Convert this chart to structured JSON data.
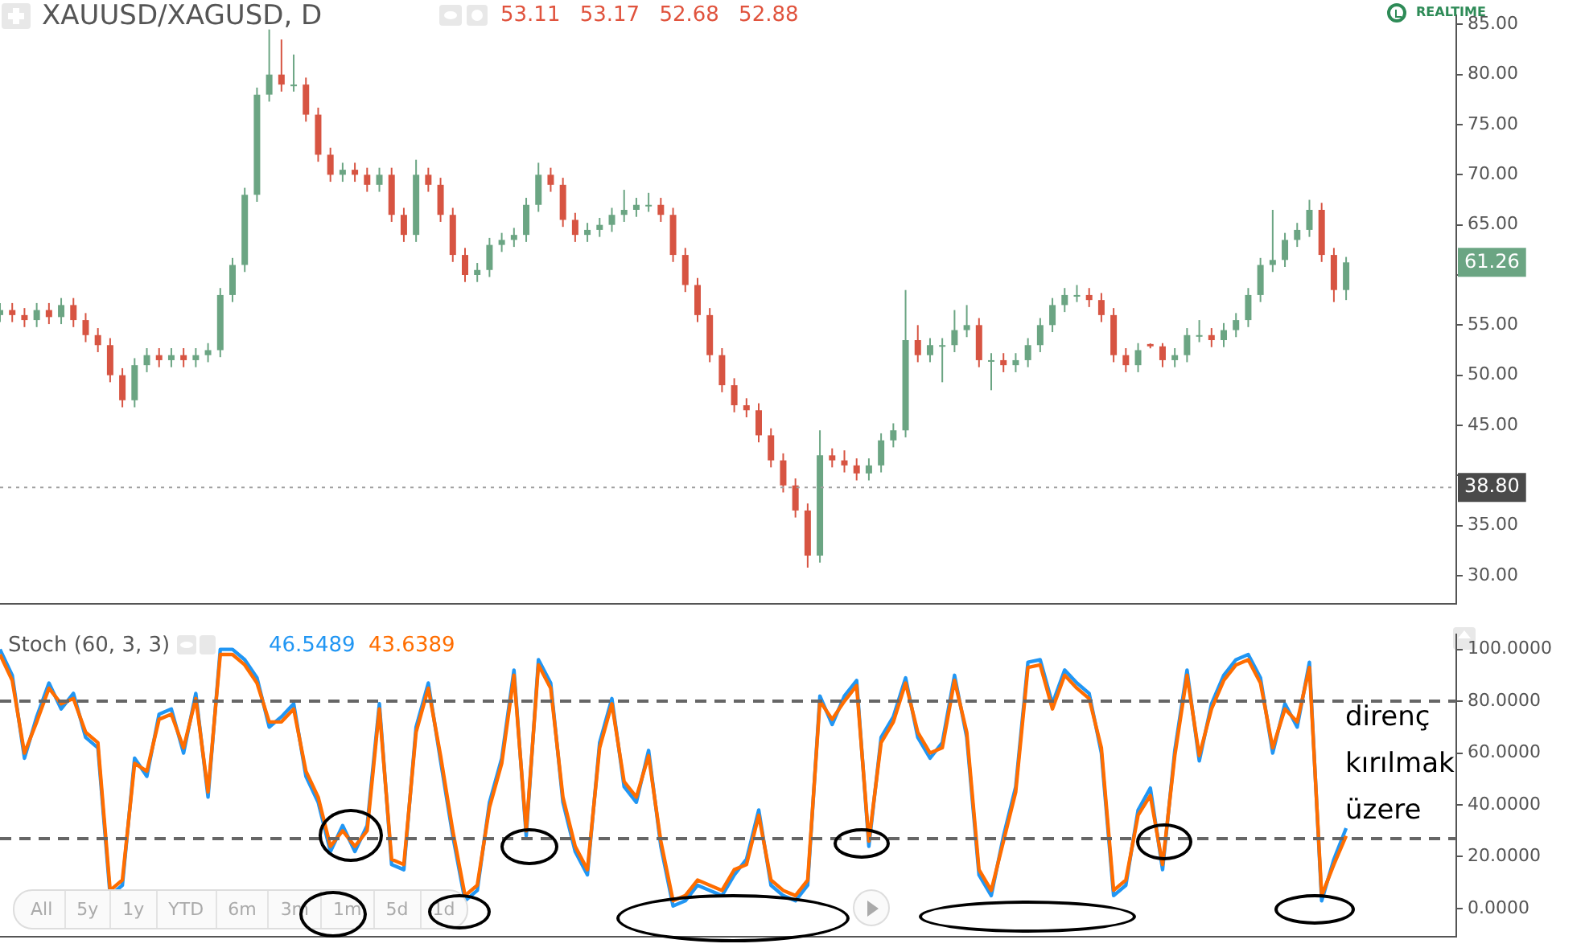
{
  "chart_data": [
    {
      "type": "candlestick",
      "title": "XAUUSD/XAGUSD, D",
      "categories": [
        null,
        null,
        null,
        null,
        null,
        null,
        null,
        null,
        null,
        null,
        null,
        null,
        null,
        null,
        null,
        null,
        null,
        null,
        null,
        null,
        null,
        null,
        null,
        null,
        null,
        null,
        null,
        null,
        null,
        null,
        null,
        null,
        null,
        null,
        null,
        null,
        null,
        null,
        null,
        null,
        null,
        null,
        null,
        null,
        null,
        null,
        null,
        null,
        null,
        null,
        null,
        null,
        null,
        null,
        null,
        null,
        null,
        null,
        null,
        null,
        null,
        null,
        null,
        null,
        null,
        null,
        null,
        null,
        null,
        null,
        null,
        null,
        null,
        null,
        null,
        null,
        null,
        null,
        null,
        null,
        null,
        null,
        null,
        null,
        null,
        null,
        null,
        null,
        null,
        null,
        null,
        null,
        null,
        null,
        null,
        null,
        null,
        null,
        null,
        null,
        null,
        null,
        null,
        null,
        null,
        null,
        null,
        null,
        null,
        null,
        null,
        null,
        null,
        null,
        null,
        null,
        null,
        null,
        null,
        null
      ],
      "ohlc": [
        [
          56,
          57.2,
          55.3,
          56.5
        ],
        [
          56.5,
          57.2,
          55.3,
          56
        ],
        [
          56,
          56.7,
          54.8,
          55.5
        ],
        [
          55.5,
          57.2,
          54.8,
          56.5
        ],
        [
          56.5,
          57.2,
          55.1,
          55.8
        ],
        [
          55.8,
          57.7,
          55.1,
          57
        ],
        [
          57,
          57.7,
          54.8,
          55.5
        ],
        [
          55.5,
          56.2,
          53.3,
          54
        ],
        [
          54,
          54.7,
          52.3,
          53
        ],
        [
          53,
          53.7,
          49.3,
          50
        ],
        [
          50,
          50.7,
          46.8,
          47.5
        ],
        [
          47.5,
          51.7,
          46.8,
          51
        ],
        [
          51,
          52.7,
          50.3,
          52
        ],
        [
          52,
          52.7,
          50.8,
          51.5
        ],
        [
          51.5,
          52.7,
          50.8,
          52
        ],
        [
          52,
          52.7,
          50.8,
          51.5
        ],
        [
          51.5,
          52.7,
          50.8,
          52
        ],
        [
          52,
          53.2,
          51.3,
          52.5
        ],
        [
          52.5,
          58.7,
          51.8,
          58
        ],
        [
          58,
          61.7,
          57.3,
          61
        ],
        [
          61,
          68.7,
          60.3,
          68
        ],
        [
          68,
          78.7,
          67.3,
          78
        ],
        [
          78,
          84.5,
          77.3,
          80
        ],
        [
          80,
          83.5,
          78.3,
          79
        ],
        [
          79,
          82,
          78.3,
          79
        ],
        [
          79,
          79.7,
          75.3,
          76
        ],
        [
          76,
          76.7,
          71.3,
          72
        ],
        [
          72,
          72.7,
          69.3,
          70
        ],
        [
          70,
          71.2,
          69.3,
          70.5
        ],
        [
          70.5,
          71.2,
          69.3,
          70
        ],
        [
          70,
          70.7,
          68.3,
          69
        ],
        [
          69,
          70.7,
          68.3,
          70
        ],
        [
          70,
          70.7,
          65.3,
          66
        ],
        [
          66,
          66.7,
          63.3,
          64
        ],
        [
          64,
          71.5,
          63.3,
          70
        ],
        [
          70,
          70.7,
          68.3,
          69
        ],
        [
          69,
          69.7,
          65.3,
          66
        ],
        [
          66,
          66.7,
          61.3,
          62
        ],
        [
          62,
          62.7,
          59.3,
          60
        ],
        [
          60,
          61.2,
          59.3,
          60.5
        ],
        [
          60.5,
          63.7,
          59.8,
          63
        ],
        [
          63,
          64.2,
          62.3,
          63.5
        ],
        [
          63.5,
          64.7,
          62.8,
          64
        ],
        [
          64,
          67.7,
          63.3,
          67
        ],
        [
          67,
          71.2,
          66.3,
          70
        ],
        [
          70,
          70.7,
          68.3,
          69
        ],
        [
          69,
          69.7,
          64.8,
          65.5
        ],
        [
          65.5,
          66.2,
          63.3,
          64
        ],
        [
          64,
          65.2,
          63.3,
          64.5
        ],
        [
          64.5,
          65.7,
          63.8,
          65
        ],
        [
          65,
          66.7,
          64.3,
          66
        ],
        [
          66,
          68.5,
          65.3,
          66.5
        ],
        [
          66.5,
          67.7,
          65.8,
          67
        ],
        [
          67,
          68.2,
          66.3,
          67
        ],
        [
          67,
          67.7,
          65.3,
          66
        ],
        [
          66,
          66.7,
          61.3,
          62
        ],
        [
          62,
          62.7,
          58.3,
          59
        ],
        [
          59,
          59.7,
          55.3,
          56
        ],
        [
          56,
          56.7,
          51.3,
          52
        ],
        [
          52,
          52.7,
          48.3,
          49
        ],
        [
          49,
          49.7,
          46.3,
          47
        ],
        [
          47,
          47.7,
          45.8,
          46.5
        ],
        [
          46.5,
          47.2,
          43.3,
          44
        ],
        [
          44,
          44.7,
          40.8,
          41.5
        ],
        [
          41.5,
          42.2,
          38.3,
          39
        ],
        [
          39,
          39.7,
          35.8,
          36.5
        ],
        [
          36.5,
          37.2,
          30.8,
          32
        ],
        [
          32,
          44.5,
          31.3,
          42
        ],
        [
          42,
          42.7,
          40.8,
          41.5
        ],
        [
          41.5,
          42.5,
          40.3,
          41
        ],
        [
          41,
          41.7,
          39.5,
          40.2
        ],
        [
          40.2,
          41.7,
          39.5,
          41
        ],
        [
          41,
          44.2,
          40.3,
          43.5
        ],
        [
          43.5,
          45.2,
          42.8,
          44.5
        ],
        [
          44.5,
          58.5,
          43.8,
          53.5
        ],
        [
          53.5,
          55,
          51.3,
          52
        ],
        [
          52,
          53.7,
          51.3,
          53
        ],
        [
          53,
          53.7,
          49.3,
          53
        ],
        [
          53,
          56.5,
          52.3,
          54.5
        ],
        [
          54.5,
          57,
          53.8,
          55
        ],
        [
          55,
          55.7,
          50.8,
          51.5
        ],
        [
          51.5,
          52.2,
          48.5,
          51.5
        ],
        [
          51.5,
          52.2,
          50.3,
          51
        ],
        [
          51,
          52.2,
          50.3,
          51.5
        ],
        [
          51.5,
          53.7,
          50.8,
          53
        ],
        [
          53,
          55.7,
          52.3,
          55
        ],
        [
          55,
          57.7,
          54.3,
          57
        ],
        [
          57,
          58.7,
          56.3,
          58
        ],
        [
          58,
          59,
          57.3,
          58
        ],
        [
          58,
          58.7,
          56.8,
          57.5
        ],
        [
          57.5,
          58.2,
          55.3,
          56
        ],
        [
          56,
          56.7,
          51.3,
          52
        ],
        [
          52,
          52.7,
          50.3,
          51
        ],
        [
          51,
          53.2,
          50.3,
          52.5
        ],
        [
          53.11,
          53.17,
          52.68,
          52.88
        ],
        [
          52.88,
          53.2,
          50.8,
          51.5
        ],
        [
          51.5,
          52.7,
          50.8,
          52
        ],
        [
          52,
          54.7,
          51.3,
          54
        ],
        [
          54,
          55.5,
          53.3,
          54
        ],
        [
          54,
          54.7,
          52.8,
          53.5
        ],
        [
          53.5,
          55.2,
          52.8,
          54.5
        ],
        [
          54.5,
          56.2,
          53.8,
          55.5
        ],
        [
          55.5,
          58.7,
          54.8,
          58
        ],
        [
          58,
          61.7,
          57.3,
          61
        ],
        [
          61,
          66.5,
          60.3,
          61.5
        ],
        [
          61.5,
          64.2,
          60.8,
          63.5
        ],
        [
          63.5,
          65.2,
          62.8,
          64.5
        ],
        [
          64.5,
          67.5,
          63.8,
          66.5
        ],
        [
          66.5,
          67.2,
          61.3,
          62
        ],
        [
          62,
          62.7,
          57.3,
          58.5
        ],
        [
          58.5,
          61.8,
          57.5,
          61.26
        ],
        null,
        null,
        null,
        null,
        null,
        null,
        null,
        null,
        null
      ],
      "colors": [
        "#6ba583",
        "#d75442",
        "#d75442",
        "#6ba583",
        "#d75442",
        "#6ba583",
        "#d75442",
        "#d75442",
        "#d75442",
        "#d75442",
        "#d75442",
        "#6ba583",
        "#6ba583",
        "#d75442",
        "#6ba583",
        "#d75442",
        "#6ba583",
        "#6ba583",
        "#6ba583",
        "#6ba583",
        "#6ba583",
        "#6ba583",
        "#6ba583",
        "#d75442",
        "#6ba583",
        "#d75442",
        "#d75442",
        "#d75442",
        "#6ba583",
        "#d75442",
        "#d75442",
        "#6ba583",
        "#d75442",
        "#d75442",
        "#6ba583",
        "#d75442",
        "#d75442",
        "#d75442",
        "#d75442",
        "#6ba583",
        "#6ba583",
        "#6ba583",
        "#6ba583",
        "#6ba583",
        "#6ba583",
        "#d75442",
        "#d75442",
        "#d75442",
        "#6ba583",
        "#6ba583",
        "#6ba583",
        "#6ba583",
        "#6ba583",
        "#6ba583",
        "#d75442",
        "#d75442",
        "#d75442",
        "#d75442",
        "#d75442",
        "#d75442",
        "#d75442",
        "#d75442",
        "#d75442",
        "#d75442",
        "#d75442",
        "#d75442",
        "#d75442",
        "#6ba583",
        "#d75442",
        "#d75442",
        "#d75442",
        "#6ba583",
        "#6ba583",
        "#6ba583",
        "#6ba583",
        "#d75442",
        "#6ba583",
        "#6ba583",
        "#6ba583",
        "#6ba583",
        "#d75442",
        "#6ba583",
        "#d75442",
        "#6ba583",
        "#6ba583",
        "#6ba583",
        "#6ba583",
        "#6ba583",
        "#6ba583",
        "#d75442",
        "#d75442",
        "#d75442",
        "#d75442",
        "#6ba583",
        "#d75442",
        "#d75442",
        "#6ba583",
        "#6ba583",
        "#6ba583",
        "#d75442",
        "#6ba583",
        "#6ba583",
        "#6ba583",
        "#6ba583",
        "#6ba583",
        "#6ba583",
        "#6ba583",
        "#6ba583",
        "#d75442",
        "#d75442",
        "#6ba583",
        null,
        null,
        null,
        null,
        null,
        null,
        null,
        null,
        null
      ],
      "ylim": [
        27.2,
        85.9
      ],
      "yticks": [
        {
          "value": 30,
          "label": "30.00"
        },
        {
          "value": 35,
          "label": "35.00"
        },
        {
          "value": 40,
          "label": null
        },
        {
          "value": 45,
          "label": "45.00"
        },
        {
          "value": 50,
          "label": "50.00"
        },
        {
          "value": 55,
          "label": "55.00"
        },
        {
          "value": 60,
          "label": null
        },
        {
          "value": 65,
          "label": "65.00"
        },
        {
          "value": 70,
          "label": "70.00"
        },
        {
          "value": 75,
          "label": "75.00"
        },
        {
          "value": 80,
          "label": "80.00"
        },
        {
          "value": 85,
          "label": "85.00"
        }
      ],
      "tick_labels": "y",
      "ref_lines": [
        {
          "axis": "y",
          "value": 38.8,
          "label": "38.80",
          "color": "#9e9e9e",
          "line_style": "dotted"
        }
      ],
      "annotations": [
        "53.11 53.17 52.68 52.88",
        "REALTIME",
        {
          "text": "61.26",
          "y": 61.26
        }
      ]
    },
    {
      "type": "line",
      "title": "Stoch (60, 3, 3)",
      "categories": [
        null,
        null,
        null,
        null,
        null,
        null,
        null,
        null,
        null,
        null,
        null,
        null,
        null,
        null,
        null,
        null,
        null,
        null,
        null,
        null,
        null,
        null,
        null,
        null,
        null,
        null,
        null,
        null,
        null,
        null,
        null,
        null,
        null,
        null,
        null,
        null,
        null,
        null,
        null,
        null,
        null,
        null,
        null,
        null,
        null,
        null,
        null,
        null,
        null,
        null,
        null,
        null,
        null,
        null,
        null,
        null,
        null,
        null,
        null,
        null,
        null,
        null,
        null,
        null,
        null,
        null,
        null,
        null,
        null,
        null,
        null,
        null,
        null,
        null,
        null,
        null,
        null,
        null,
        null,
        null,
        null,
        null,
        null,
        null,
        null,
        null,
        null,
        null,
        null,
        null,
        null,
        null,
        null,
        null,
        null,
        null,
        null,
        null,
        null,
        null,
        null,
        null,
        null,
        null,
        null,
        null,
        null,
        null,
        null,
        null,
        null,
        null,
        null,
        null,
        null,
        null,
        null,
        null,
        null,
        null
      ],
      "series": [
        {
          "color": "#2196f3",
          "values": [
            100,
            90,
            58,
            74,
            87,
            77,
            83,
            66,
            62,
            5,
            9,
            58,
            51,
            75,
            77,
            60,
            83,
            43,
            100,
            100,
            96,
            89,
            70,
            74,
            79,
            51,
            41,
            22,
            32,
            22,
            32,
            79,
            17,
            15,
            70,
            87,
            57,
            28,
            3,
            7,
            41,
            58,
            92,
            28,
            96,
            87,
            41,
            22,
            13,
            64,
            81,
            47,
            41,
            61,
            24,
            1,
            3,
            9,
            7,
            5,
            13,
            19,
            38,
            9,
            5,
            3,
            9,
            82,
            71,
            82,
            88,
            24,
            66,
            74,
            89,
            66,
            58,
            64,
            90,
            66,
            13,
            5,
            28,
            47,
            95,
            96,
            79,
            92,
            87,
            83,
            60,
            5,
            9,
            38,
            46.5,
            15,
            61,
            92,
            57,
            79,
            90,
            96,
            98,
            89,
            60,
            79,
            70,
            95,
            3,
            19,
            31,
            null,
            null,
            null,
            null,
            null,
            null,
            null,
            null,
            null
          ]
        },
        {
          "color": "#ff6d00",
          "values": [
            98,
            88,
            60,
            72,
            85,
            79,
            81,
            68,
            64,
            7,
            11,
            56,
            53,
            73,
            75,
            62,
            81,
            45,
            98,
            98,
            94,
            87,
            72,
            72,
            77,
            53,
            43,
            24,
            30,
            24,
            30,
            77,
            19,
            17,
            68,
            85,
            59,
            30,
            5,
            9,
            39,
            56,
            90,
            30,
            94,
            85,
            43,
            24,
            15,
            62,
            79,
            49,
            43,
            59,
            26,
            3,
            5,
            11,
            9,
            7,
            15,
            17,
            36,
            11,
            7,
            5,
            11,
            80,
            73,
            80,
            86,
            26,
            64,
            72,
            87,
            68,
            60,
            62,
            88,
            68,
            15,
            7,
            26,
            45,
            93,
            94,
            77,
            90,
            85,
            81,
            62,
            7,
            11,
            36,
            43.6,
            17,
            59,
            90,
            59,
            77,
            88,
            94,
            96,
            87,
            62,
            77,
            72,
            93,
            5,
            17,
            28,
            null,
            null,
            null,
            null,
            null,
            null,
            null,
            null,
            null
          ]
        }
      ],
      "ylim": [
        -10.8,
        105.7
      ],
      "yticks": [
        {
          "value": 0,
          "label": "0.0000"
        },
        {
          "value": 20,
          "label": "20.0000"
        },
        {
          "value": 40,
          "label": "40.0000"
        },
        {
          "value": 60,
          "label": "60.0000"
        },
        {
          "value": 80,
          "label": "80.0000"
        },
        {
          "value": 100,
          "label": "100.0000"
        }
      ],
      "tick_labels": "y",
      "marker": "none",
      "line_style": "solid",
      "ref_lines": [
        {
          "axis": "y",
          "value": 80,
          "color": "#666666",
          "line_style": "dashed"
        },
        {
          "axis": "y",
          "value": 27,
          "color": "#666666",
          "line_style": "dashed"
        }
      ],
      "annotations": [
        "46.5489",
        "43.6389",
        "direnç kırılmak üzere",
        "All",
        "5y",
        "1y",
        "YTD",
        "6m",
        "3m",
        "1m",
        "5d",
        "1d"
      ]
    }
  ]
}
